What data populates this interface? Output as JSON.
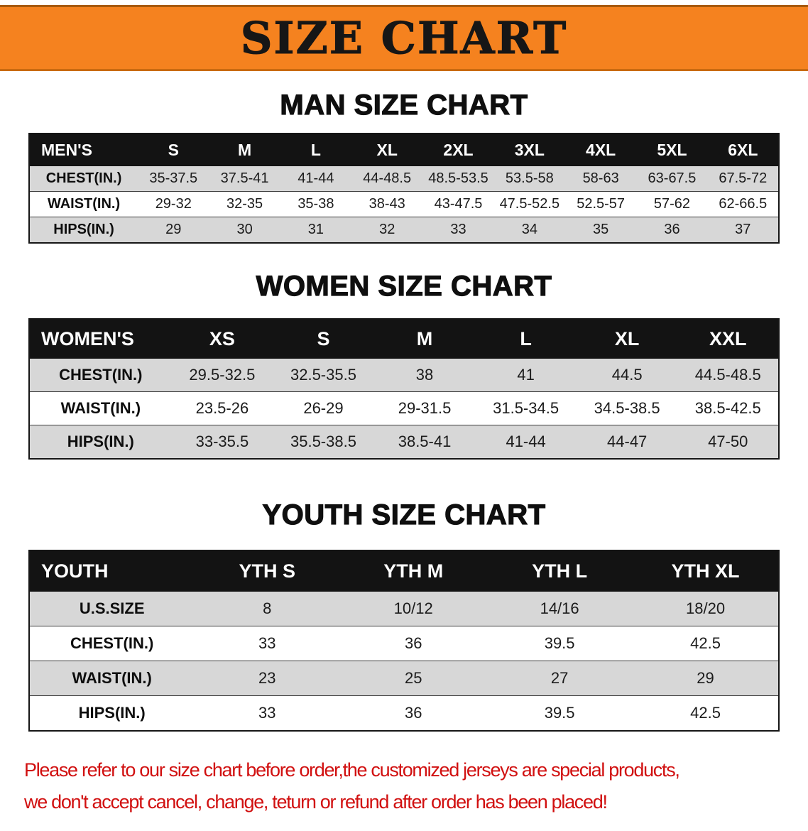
{
  "banner": {
    "title": "SIZE CHART"
  },
  "sections": [
    {
      "heading": "MAN SIZE CHART",
      "table": {
        "header": [
          "MEN'S",
          "S",
          "M",
          "L",
          "XL",
          "2XL",
          "3XL",
          "4XL",
          "5XL",
          "6XL"
        ],
        "rows": [
          {
            "label": "CHEST(IN.)",
            "values": [
              "35-37.5",
              "37.5-41",
              "41-44",
              "44-48.5",
              "48.5-53.5",
              "53.5-58",
              "58-63",
              "63-67.5",
              "67.5-72"
            ]
          },
          {
            "label": "WAIST(IN.)",
            "values": [
              "29-32",
              "32-35",
              "35-38",
              "38-43",
              "43-47.5",
              "47.5-52.5",
              "52.5-57",
              "57-62",
              "62-66.5"
            ]
          },
          {
            "label": "HIPS(IN.)",
            "values": [
              "29",
              "30",
              "31",
              "32",
              "33",
              "34",
              "35",
              "36",
              "37"
            ]
          }
        ]
      }
    },
    {
      "heading": "WOMEN SIZE CHART",
      "table": {
        "header": [
          "WOMEN'S",
          "XS",
          "S",
          "M",
          "L",
          "XL",
          "XXL"
        ],
        "rows": [
          {
            "label": "CHEST(IN.)",
            "values": [
              "29.5-32.5",
              "32.5-35.5",
              "38",
              "41",
              "44.5",
              "44.5-48.5"
            ]
          },
          {
            "label": "WAIST(IN.)",
            "values": [
              "23.5-26",
              "26-29",
              "29-31.5",
              "31.5-34.5",
              "34.5-38.5",
              "38.5-42.5"
            ]
          },
          {
            "label": "HIPS(IN.)",
            "values": [
              "33-35.5",
              "35.5-38.5",
              "38.5-41",
              "41-44",
              "44-47",
              "47-50"
            ]
          }
        ]
      }
    },
    {
      "heading": "YOUTH SIZE CHART",
      "table": {
        "header": [
          "YOUTH",
          "YTH S",
          "YTH M",
          "YTH L",
          "YTH XL"
        ],
        "rows": [
          {
            "label": "U.S.SIZE",
            "values": [
              "8",
              "10/12",
              "14/16",
              "18/20"
            ]
          },
          {
            "label": "CHEST(IN.)",
            "values": [
              "33",
              "36",
              "39.5",
              "42.5"
            ]
          },
          {
            "label": "WAIST(IN.)",
            "values": [
              "23",
              "25",
              "27",
              "29"
            ]
          },
          {
            "label": "HIPS(IN.)",
            "values": [
              "33",
              "36",
              "39.5",
              "42.5"
            ]
          }
        ]
      }
    }
  ],
  "disclaimer": {
    "line1": "Please refer to our size chart before order,the customized jerseys are special products,",
    "line2": "we don't accept cancel, change, teturn or refund after order has been placed!"
  },
  "colors": {
    "banner_bg": "#f5821f",
    "header_bg": "#131313",
    "row_alt_bg": "#d7d7d7",
    "disclaimer_red": "#d11010"
  }
}
